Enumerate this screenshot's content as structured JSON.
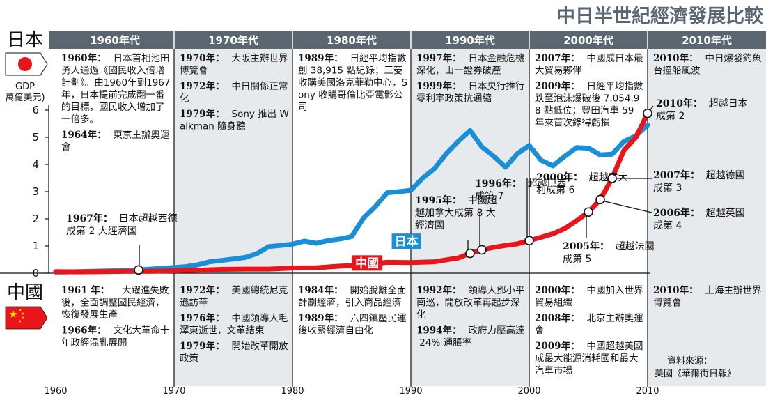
{
  "title": "中日半世紀經濟發展比較",
  "colors": {
    "japan": "#1b8fd6",
    "china": "#e8161b",
    "header_band": "#5a6771",
    "band_light": "#e7eaed",
    "band_white": "#ffffff"
  },
  "legend": {
    "japan_label": "日本",
    "china_label": "中國",
    "unit_label": "GDP\n萬億美元)"
  },
  "decades": [
    "1960年代",
    "1970年代",
    "1980年代",
    "1990年代",
    "2000年代",
    "2010年代"
  ],
  "chart_data": {
    "type": "line",
    "title": "中日半世紀經濟發展比較",
    "ylabel": "GDP 萬億美元)",
    "xlabel": "",
    "xlim": [
      1960,
      2010
    ],
    "ylim": [
      0,
      6
    ],
    "yticks": [
      0,
      1,
      2,
      3,
      4,
      5,
      6
    ],
    "xticks": [
      1960,
      1970,
      1980,
      1990,
      2000,
      2010
    ],
    "grid": false,
    "series": [
      {
        "name": "日本",
        "x": [
          1960,
          1961,
          1962,
          1963,
          1964,
          1965,
          1966,
          1967,
          1968,
          1969,
          1970,
          1971,
          1972,
          1973,
          1974,
          1975,
          1976,
          1977,
          1978,
          1979,
          1980,
          1981,
          1982,
          1983,
          1984,
          1985,
          1986,
          1987,
          1988,
          1989,
          1990,
          1991,
          1992,
          1993,
          1994,
          1995,
          1996,
          1997,
          1998,
          1999,
          2000,
          2001,
          2002,
          2003,
          2004,
          2005,
          2006,
          2007,
          2008,
          2009,
          2010
        ],
        "values": [
          0.04,
          0.05,
          0.06,
          0.07,
          0.08,
          0.09,
          0.1,
          0.12,
          0.15,
          0.18,
          0.21,
          0.24,
          0.31,
          0.42,
          0.47,
          0.52,
          0.58,
          0.72,
          0.98,
          1.02,
          1.07,
          1.18,
          1.1,
          1.2,
          1.26,
          1.35,
          2.03,
          2.45,
          2.96,
          3.0,
          3.05,
          3.5,
          3.85,
          4.4,
          4.85,
          5.25,
          4.65,
          4.3,
          3.9,
          4.4,
          4.7,
          4.15,
          3.95,
          4.3,
          4.62,
          4.6,
          4.35,
          4.38,
          4.85,
          5.05,
          5.45
        ]
      },
      {
        "name": "中國",
        "x": [
          1960,
          1962,
          1964,
          1966,
          1968,
          1970,
          1972,
          1974,
          1976,
          1978,
          1980,
          1982,
          1984,
          1986,
          1988,
          1990,
          1992,
          1994,
          1995,
          1996,
          1997,
          1998,
          1999,
          2000,
          2001,
          2002,
          2003,
          2004,
          2005,
          2006,
          2007,
          2008,
          2009,
          2010
        ],
        "values": [
          0.06,
          0.05,
          0.06,
          0.07,
          0.07,
          0.09,
          0.11,
          0.14,
          0.15,
          0.15,
          0.19,
          0.2,
          0.26,
          0.3,
          0.4,
          0.39,
          0.42,
          0.56,
          0.73,
          0.86,
          0.95,
          1.02,
          1.08,
          1.2,
          1.32,
          1.45,
          1.64,
          1.93,
          2.25,
          2.71,
          3.49,
          4.52,
          4.99,
          5.88
        ]
      }
    ],
    "annotations": {
      "japan_events": [
        {
          "decade": 0,
          "items": [
            {
              "year": "1960年：",
              "text": "日本首相池田勇人通過《國民收入倍增計劃》。由1960年到1967年，日本提前完成翻一番的目標，國民收入增加了一倍多。"
            },
            {
              "year": "1964年：",
              "text": "東京主辦奧運會"
            }
          ]
        },
        {
          "decade": 1,
          "items": [
            {
              "year": "1970年：",
              "text": "大阪主辦世界博覽會"
            },
            {
              "year": "1972年：",
              "text": "中日關係正常化"
            },
            {
              "year": "1979年：",
              "text": "Sony 推出 Walkman 隨身聽"
            }
          ]
        },
        {
          "decade": 2,
          "items": [
            {
              "year": "1989年：",
              "text": "日經平均指數創 38,915 點紀錄；三菱收購美國洛克菲勒中心，Sony 收購哥倫比亞電影公司"
            }
          ]
        },
        {
          "decade": 3,
          "items": [
            {
              "year": "1997年：",
              "text": "日本金融危機深化，山一證券破產"
            },
            {
              "year": "1999年：",
              "text": "日本央行推行零利率政策抗通縮"
            }
          ]
        },
        {
          "decade": 4,
          "items": [
            {
              "year": "2007年：",
              "text": "中國成日本最大貿易夥伴"
            },
            {
              "year": "2009年：",
              "text": "日經平均指數跌至泡沫爆破後 7,054.98 點低位；豐田汽車 59 年來首次錄得虧損"
            }
          ]
        },
        {
          "decade": 5,
          "items": [
            {
              "year": "2010年：",
              "text": "中日爆發釣魚台撞船風波"
            }
          ]
        }
      ],
      "china_events": [
        {
          "decade": 0,
          "items": [
            {
              "year": "1961 年：",
              "text": "大躍進失敗後，全面調整國民經濟，恢復發展生產"
            },
            {
              "year": "1966年：",
              "text": "文化大革命十年政經混亂展開"
            }
          ]
        },
        {
          "decade": 1,
          "items": [
            {
              "year": "1972年：",
              "text": "美國總統尼克遜訪華"
            },
            {
              "year": "1976年：",
              "text": "中國領導人毛澤東逝世，文革結束"
            },
            {
              "year": "1979年：",
              "text": "開始改革開放政策"
            }
          ]
        },
        {
          "decade": 2,
          "items": [
            {
              "year": "1984年：",
              "text": "開始脫離全面計劃經濟，引入商品經濟"
            },
            {
              "year": "1989年：",
              "text": "六四鎮壓民運後收緊經濟自由化"
            }
          ]
        },
        {
          "decade": 3,
          "items": [
            {
              "year": "1992年：",
              "text": "領導人鄧小平南巡，開放改革再起步深化"
            },
            {
              "year": "1994年：",
              "text": "政府力壓高達 24% 通脹率"
            }
          ]
        },
        {
          "decade": 4,
          "items": [
            {
              "year": "2000年：",
              "text": "中國加入世界貿易組織"
            },
            {
              "year": "2008年：",
              "text": "北京主辦奧運會"
            },
            {
              "year": "2009年：",
              "text": "中國超越美國成最大能源消耗國和最大汽車市場"
            }
          ]
        },
        {
          "decade": 5,
          "items": [
            {
              "year": "2010年：",
              "text": "上海主辦世界博覽會"
            }
          ]
        }
      ],
      "milestones": [
        {
          "year": 1967,
          "series": "日本",
          "value": 0.12,
          "label_year": "1967年：",
          "label": "日本超越西德成第 2 大經濟國"
        },
        {
          "year": 1995,
          "series": "中國",
          "value": 0.73,
          "label_year": "1995年：",
          "label": "中國超越加拿大成第 8 大經濟國"
        },
        {
          "year": 1996,
          "series": "中國",
          "value": 0.86,
          "label_year": "1996年：",
          "label": "超越巴西成第 7"
        },
        {
          "year": 2000,
          "series": "中國",
          "value": 1.2,
          "label_year": "2000年：",
          "label": "超越意大利成第 6"
        },
        {
          "year": 2005,
          "series": "中國",
          "value": 2.25,
          "label_year": "2005年：",
          "label": "超越法國成第 5"
        },
        {
          "year": 2006,
          "series": "中國",
          "value": 2.71,
          "label_year": "2006年：",
          "label": "超越英國成第 4"
        },
        {
          "year": 2007,
          "series": "中國",
          "value": 3.49,
          "label_year": "2007年：",
          "label": "超越德國成第 3"
        },
        {
          "year": 2010,
          "series": "中國",
          "value": 5.88,
          "label_year": "2010年：",
          "label": "超越日本成第 2"
        }
      ]
    }
  },
  "source": {
    "line1": "資料來源：",
    "line2": "美國《華爾街日報》"
  }
}
